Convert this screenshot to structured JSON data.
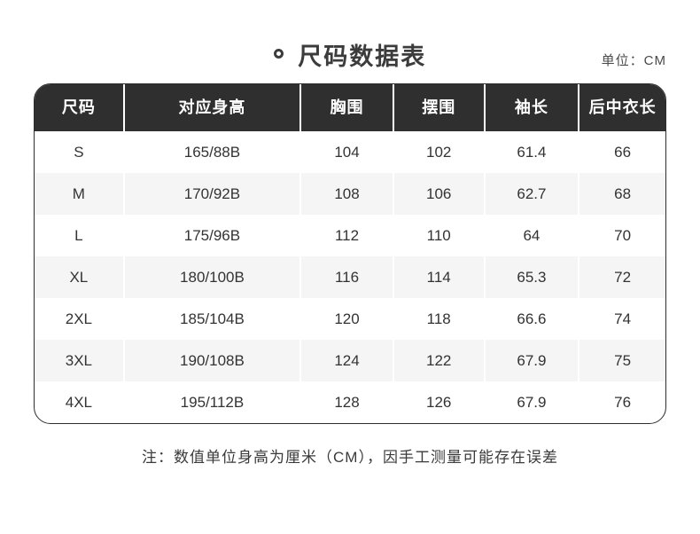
{
  "header": {
    "title": "尺码数据表",
    "unit_label": "单位：CM"
  },
  "table": {
    "columns": [
      "尺码",
      "对应身高",
      "胸围",
      "摆围",
      "袖长",
      "后中衣长"
    ],
    "rows": [
      [
        "S",
        "165/88B",
        "104",
        "102",
        "61.4",
        "66"
      ],
      [
        "M",
        "170/92B",
        "108",
        "106",
        "62.7",
        "68"
      ],
      [
        "L",
        "175/96B",
        "112",
        "110",
        "64",
        "70"
      ],
      [
        "XL",
        "180/100B",
        "116",
        "114",
        "65.3",
        "72"
      ],
      [
        "2XL",
        "185/104B",
        "120",
        "118",
        "66.6",
        "74"
      ],
      [
        "3XL",
        "190/108B",
        "124",
        "122",
        "67.9",
        "75"
      ],
      [
        "4XL",
        "195/112B",
        "128",
        "126",
        "67.9",
        "76"
      ]
    ]
  },
  "footer": {
    "note": "注：数值单位身高为厘米（CM），因手工测量可能存在误差"
  },
  "colors": {
    "header_bg": "#2f2f2f",
    "header_text": "#ffffff",
    "alt_row_bg": "#f5f5f5",
    "table_border": "#2d2d2d",
    "body_text": "#333333"
  },
  "chart_data": {
    "type": "table",
    "title": "尺码数据表",
    "unit": "CM",
    "columns": [
      "尺码",
      "对应身高",
      "胸围",
      "摆围",
      "袖长",
      "后中衣长"
    ],
    "rows": [
      [
        "S",
        "165/88B",
        104,
        102,
        61.4,
        66
      ],
      [
        "M",
        "170/92B",
        108,
        106,
        62.7,
        68
      ],
      [
        "L",
        "175/96B",
        112,
        110,
        64,
        70
      ],
      [
        "XL",
        "180/100B",
        116,
        114,
        65.3,
        72
      ],
      [
        "2XL",
        "185/104B",
        120,
        118,
        66.6,
        74
      ],
      [
        "3XL",
        "190/108B",
        124,
        122,
        67.9,
        75
      ],
      [
        "4XL",
        "195/112B",
        128,
        126,
        67.9,
        76
      ]
    ],
    "note": "注：数值单位身高为厘米（CM），因手工测量可能存在误差"
  }
}
